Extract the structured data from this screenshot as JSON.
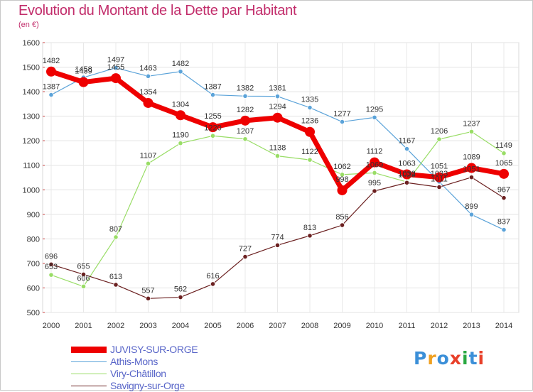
{
  "header": {
    "title": "Evolution du Montant de la Dette par Habitant",
    "unit": "(en €)"
  },
  "logo": {
    "text": "Proxiti",
    "colors": [
      "#3b8fd8",
      "#f0a020",
      "#3b8fd8",
      "#e8402a",
      "#2aa842",
      "#3b8fd8",
      "#e8402a"
    ]
  },
  "chart_data": {
    "type": "line",
    "x": [
      "2000",
      "2001",
      "2002",
      "2003",
      "2004",
      "2005",
      "2006",
      "2007",
      "2008",
      "2009",
      "2010",
      "2011",
      "2012",
      "2013",
      "2014"
    ],
    "ylim": [
      500,
      1600
    ],
    "yticks": [
      500,
      600,
      700,
      800,
      900,
      1000,
      1100,
      1200,
      1300,
      1400,
      1500,
      1600
    ],
    "grid": true,
    "legend_position": "bottom-left",
    "series": [
      {
        "name": "JUVISY-SUR-ORGE",
        "color": "#ee0000",
        "emphasis": true,
        "values": [
          1482,
          1439,
          1455,
          1354,
          1304,
          1255,
          1282,
          1294,
          1236,
          998,
          1112,
          1063,
          1051,
          1089,
          1065
        ]
      },
      {
        "name": "Athis-Mons",
        "color": "#5ba3d9",
        "values": [
          1387,
          1458,
          1497,
          1463,
          1482,
          1387,
          1382,
          1381,
          1335,
          1277,
          1295,
          1167,
          1033,
          899,
          837
        ]
      },
      {
        "name": "Viry-Châtillon",
        "color": "#99dd66",
        "values": [
          653,
          606,
          807,
          1107,
          1190,
          1220,
          1207,
          1138,
          1122,
          1062,
          1069,
          1032,
          1206,
          1237,
          1149
        ]
      },
      {
        "name": "Savigny-sur-Orge",
        "color": "#6b2020",
        "values": [
          696,
          655,
          613,
          557,
          562,
          616,
          727,
          774,
          813,
          856,
          995,
          1029,
          1011,
          1051,
          967
        ]
      }
    ]
  }
}
